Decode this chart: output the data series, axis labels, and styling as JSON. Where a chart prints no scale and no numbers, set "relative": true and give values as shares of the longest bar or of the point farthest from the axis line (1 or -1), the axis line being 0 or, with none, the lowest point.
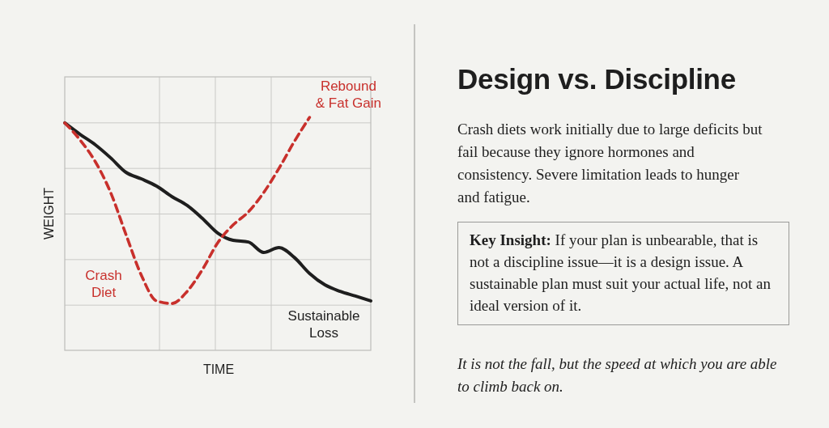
{
  "chart_data": [
    {
      "type": "line",
      "relative": true,
      "xlabel": "TIME",
      "ylabel": "WEIGHT",
      "grid": true,
      "categories": [
        null,
        null,
        null,
        null,
        null,
        null,
        null,
        null,
        null,
        null,
        null,
        null,
        null,
        null,
        null,
        null,
        null,
        null,
        null,
        null,
        null
      ],
      "series": [
        {
          "name": "Sustainable Loss",
          "color": "#1e1e1e",
          "line_style": "solid",
          "values": [
            0.976,
            0.927,
            0.882,
            0.826,
            0.764,
            0.736,
            0.705,
            0.66,
            0.622,
            0.566,
            0.503,
            0.472,
            0.465,
            0.42,
            0.441,
            0.399,
            0.33,
            0.281,
            0.253,
            0.233,
            0.212
          ]
        },
        {
          "name": "Crash Diet",
          "color": "#c8302c",
          "line_style": "dashed",
          "values": [
            0.976,
            0.903,
            0.809,
            0.677,
            0.497,
            0.323,
            0.212,
            0.201,
            0.253,
            0.347,
            0.462,
            0.538,
            0.594,
            0.677,
            0.781,
            0.896,
            1.0,
            null,
            null,
            null,
            null
          ]
        }
      ],
      "annotations": [
        "Rebound & Fat Gain"
      ]
    },
    {
      "type": "other",
      "title": "Design vs. Discipline",
      "annotations": [
        "Crash diets work initially due to large deficits but fail because they ignore hormones and consistency. Severe limitation leads to hunger and fatigue.",
        "Key Insight: If your plan is unbearable, that is not a discipline issue—it is a design issue. A sustainable plan must suit your actual life, not an ideal version of it.",
        "It is not the fall, but the speed at which you are able to climb back on."
      ]
    }
  ]
}
